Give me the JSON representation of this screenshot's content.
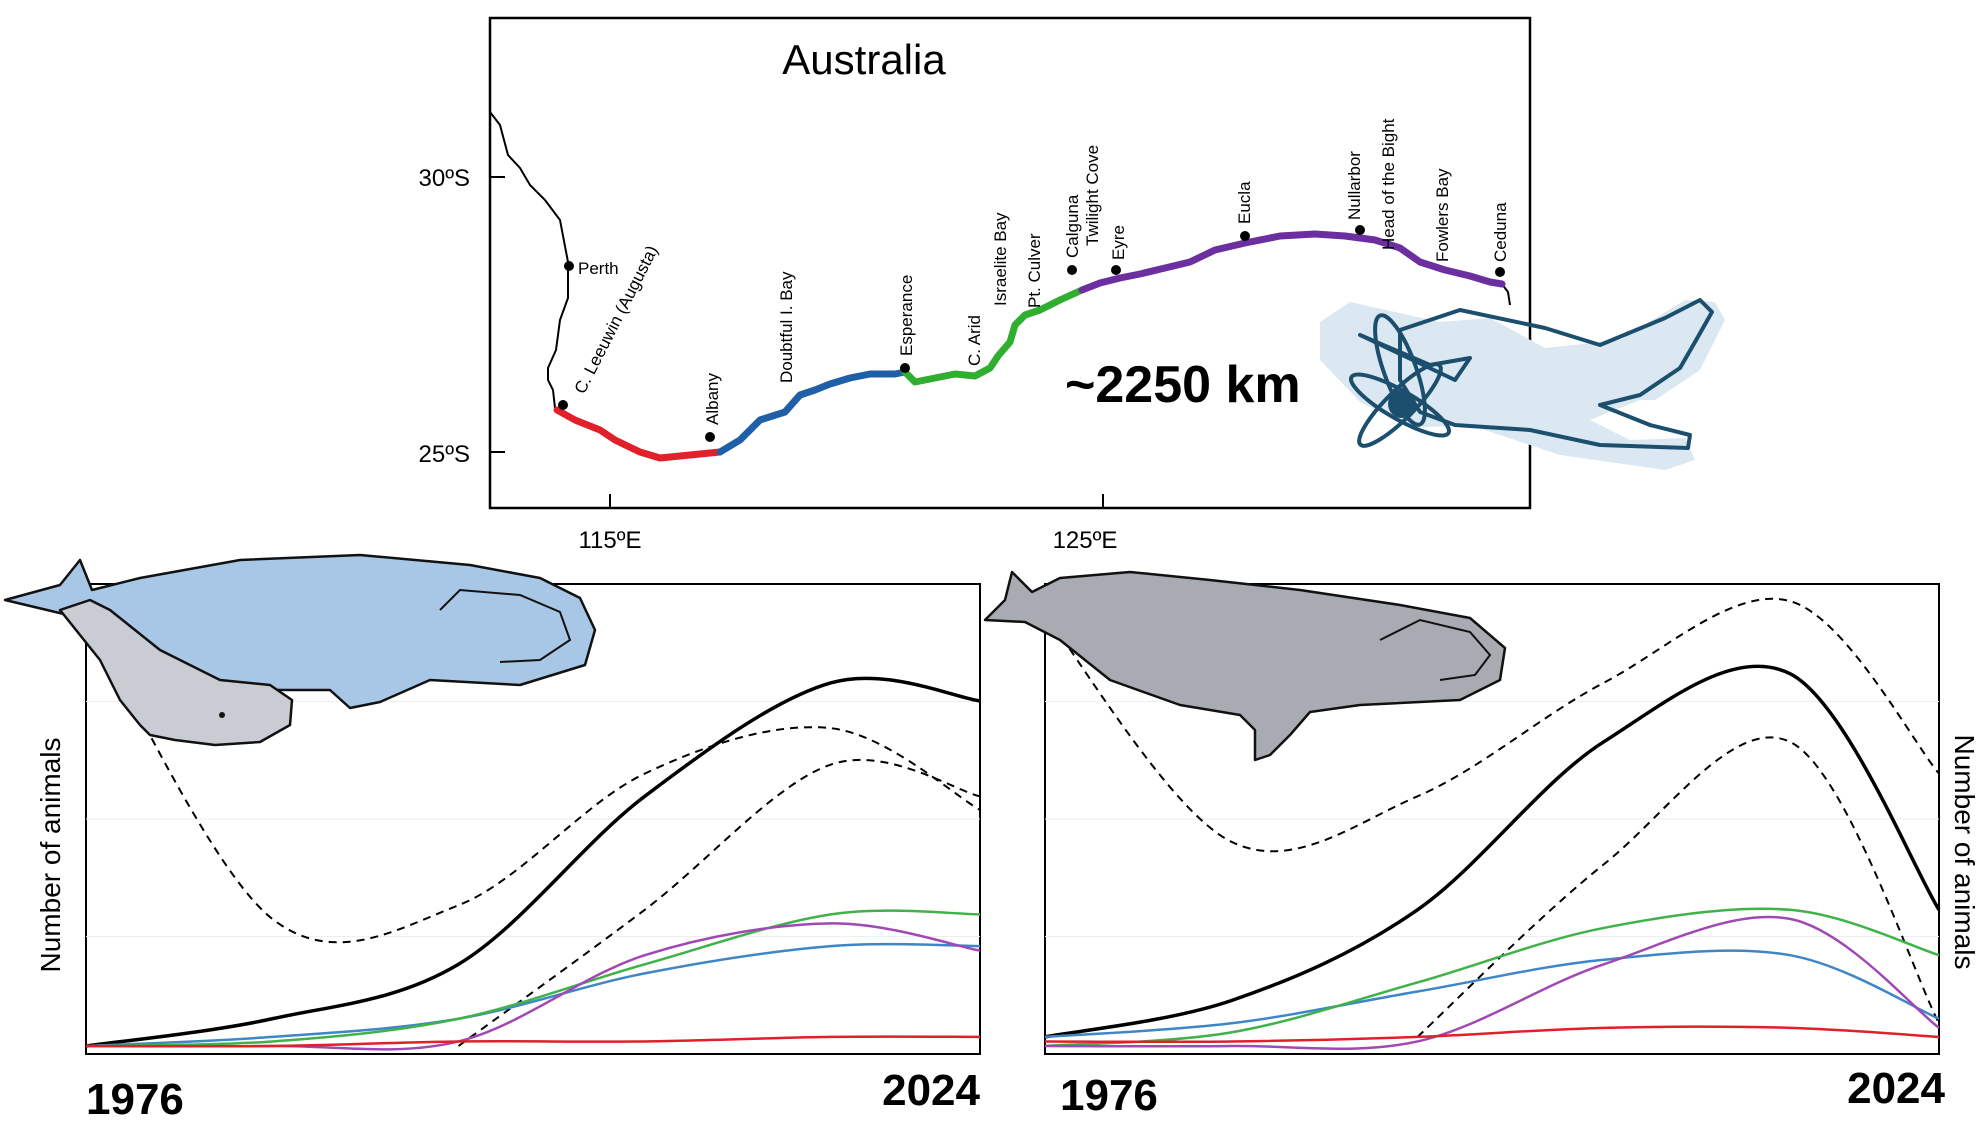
{
  "map": {
    "title": "Australia",
    "lat_labels": [
      "30ºS",
      "25ºS"
    ],
    "lon_labels": [
      "115ºE",
      "125ºE"
    ],
    "places": [
      "Perth",
      "C. Leeuwin (Augusta)",
      "Albany",
      "Doubtful I. Bay",
      "Esperance",
      "C. Arid",
      "Israelite Bay",
      "Pt. Culver",
      "Calguna",
      "Twilight Cove",
      "Eyre",
      "Eucla",
      "Nullarbor",
      "Head of the Bight",
      "Fowlers Bay",
      "Ceduna"
    ],
    "distance_label": "~2250 km",
    "segment_colors": [
      "#e0202a",
      "#1f5fa8",
      "#2fae2f",
      "#6b2fa0"
    ]
  },
  "charts": {
    "y_label": "Number of animals",
    "x_start": "1976",
    "x_end": "2024"
  },
  "chart_data": [
    {
      "type": "line",
      "x": [
        1976,
        1986,
        1996,
        2006,
        2016,
        2024
      ],
      "xlim": [
        1976,
        2024
      ],
      "ylim": [
        0,
        1
      ],
      "ylabel": "Number of animals",
      "series": [
        {
          "color": "#000000",
          "values": [
            0.0,
            0.06,
            0.18,
            0.55,
            0.8,
            0.76
          ]
        },
        {
          "color": "#000000",
          "dash": true,
          "values": [
            0.95,
            0.28,
            0.31,
            0.6,
            0.7,
            0.52
          ]
        },
        {
          "color": "#000000",
          "dash": true,
          "values": [
            null,
            null,
            0.0,
            0.3,
            0.62,
            0.55
          ]
        },
        {
          "color": "#3f86c8",
          "values": [
            0.0,
            0.02,
            0.06,
            0.16,
            0.22,
            0.22
          ]
        },
        {
          "color": "#3fb24a",
          "values": [
            0.0,
            0.01,
            0.06,
            0.18,
            0.29,
            0.29
          ]
        },
        {
          "color": "#a048b4",
          "values": [
            0.0,
            0.0,
            0.01,
            0.2,
            0.27,
            0.21
          ]
        },
        {
          "color": "#e0202a",
          "values": [
            0.0,
            0.0,
            0.01,
            0.01,
            0.02,
            0.02
          ]
        }
      ]
    },
    {
      "type": "line",
      "x": [
        1976,
        1986,
        1996,
        2006,
        2016,
        2024
      ],
      "xlim": [
        1976,
        2024
      ],
      "ylim": [
        0,
        1
      ],
      "ylabel": "Number of animals",
      "series": [
        {
          "color": "#000000",
          "values": [
            0.02,
            0.1,
            0.3,
            0.67,
            0.82,
            0.3
          ]
        },
        {
          "color": "#000000",
          "dash": true,
          "values": [
            0.95,
            0.45,
            0.55,
            0.8,
            0.98,
            0.6
          ]
        },
        {
          "color": "#000000",
          "dash": true,
          "values": [
            null,
            null,
            0.02,
            0.4,
            0.67,
            0.05
          ]
        },
        {
          "color": "#3f86c8",
          "values": [
            0.02,
            0.05,
            0.12,
            0.19,
            0.2,
            0.06
          ]
        },
        {
          "color": "#3fb24a",
          "values": [
            0.0,
            0.03,
            0.14,
            0.26,
            0.3,
            0.2
          ]
        },
        {
          "color": "#a048b4",
          "values": [
            0.0,
            0.0,
            0.01,
            0.18,
            0.28,
            0.04
          ]
        },
        {
          "color": "#e0202a",
          "values": [
            0.01,
            0.01,
            0.02,
            0.04,
            0.04,
            0.02
          ]
        }
      ]
    }
  ]
}
